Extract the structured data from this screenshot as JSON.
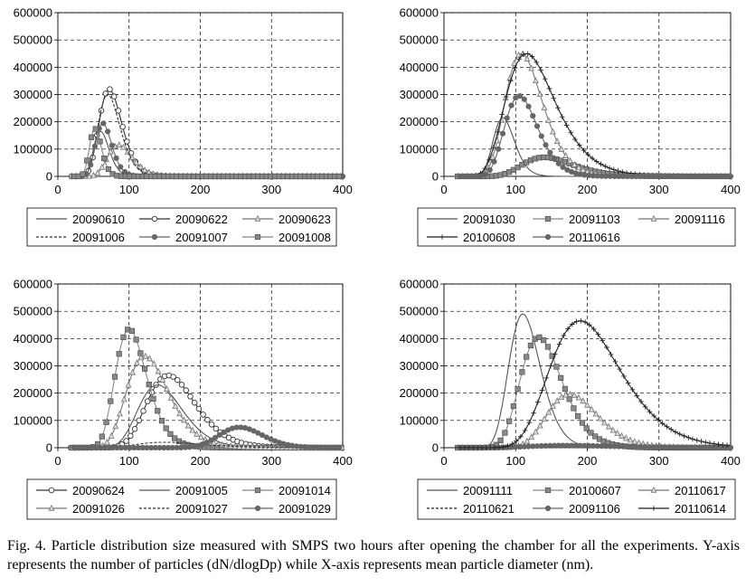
{
  "caption": "Fig. 4. Particle distribution size measured with SMPS two hours after opening the chamber for all the experiments. Y-axis represents the number of particles (dN/dlogDp) while X-axis represents mean particle diameter (nm).",
  "chart_data": [
    {
      "type": "line",
      "title": "",
      "xlabel": "",
      "ylabel": "",
      "xlim": [
        0,
        400
      ],
      "ylim": [
        0,
        600000
      ],
      "xticks": [
        "0",
        "100",
        "200",
        "300",
        "400"
      ],
      "yticks": [
        "0",
        "100000",
        "200000",
        "300000",
        "400000",
        "500000",
        "600000"
      ],
      "series": [
        {
          "name": "20090610",
          "marker": "none",
          "dash": "solid",
          "color": "#555555",
          "peak_x": 60,
          "peak_y": 165000,
          "width": 0.18
        },
        {
          "name": "20090622",
          "marker": "circle",
          "dash": "solid",
          "color": "#333333",
          "peak_x": 72,
          "peak_y": 320000,
          "width": 0.22
        },
        {
          "name": "20090623",
          "marker": "triangle",
          "dash": "solid",
          "color": "#777777",
          "peak_x": 85,
          "peak_y": 115000,
          "width": 0.2
        },
        {
          "name": "20091006",
          "marker": "none",
          "dash": "dashed",
          "color": "#333333",
          "peak_x": 70,
          "peak_y": 300000,
          "width": 0.22
        },
        {
          "name": "20091007",
          "marker": "dot",
          "dash": "solid",
          "color": "#666666",
          "peak_x": 63,
          "peak_y": 195000,
          "width": 0.18
        },
        {
          "name": "20091008",
          "marker": "square",
          "dash": "solid",
          "color": "#888888",
          "peak_x": 52,
          "peak_y": 175000,
          "width": 0.16
        }
      ]
    },
    {
      "type": "line",
      "title": "",
      "xlabel": "",
      "ylabel": "",
      "xlim": [
        0,
        400
      ],
      "ylim": [
        0,
        600000
      ],
      "xticks": [
        "0",
        "100",
        "200",
        "300",
        "400"
      ],
      "yticks": [
        "0",
        "100000",
        "200000",
        "300000",
        "400000",
        "500000",
        "600000"
      ],
      "series": [
        {
          "name": "20091030",
          "marker": "none",
          "dash": "solid",
          "color": "#555555",
          "peak_x": 82,
          "peak_y": 215000,
          "width": 0.18
        },
        {
          "name": "20091103",
          "marker": "square",
          "dash": "solid",
          "color": "#888888",
          "peak_x": 140,
          "peak_y": 70000,
          "width": 0.25
        },
        {
          "name": "20091116",
          "marker": "triangle",
          "dash": "solid",
          "color": "#777777",
          "peak_x": 108,
          "peak_y": 450000,
          "width": 0.24
        },
        {
          "name": "20100608",
          "marker": "plus",
          "dash": "solid",
          "color": "#222222",
          "peak_x": 115,
          "peak_y": 450000,
          "width": 0.3
        },
        {
          "name": "20110616",
          "marker": "dot",
          "dash": "solid",
          "color": "#666666",
          "peak_x": 105,
          "peak_y": 295000,
          "width": 0.22
        }
      ]
    },
    {
      "type": "line",
      "title": "",
      "xlabel": "",
      "ylabel": "",
      "xlim": [
        0,
        400
      ],
      "ylim": [
        0,
        600000
      ],
      "xticks": [
        "0",
        "100",
        "200",
        "300",
        "400"
      ],
      "yticks": [
        "0",
        "100000",
        "200000",
        "300000",
        "400000",
        "500000",
        "600000"
      ],
      "series": [
        {
          "name": "20090624",
          "marker": "circle",
          "dash": "solid",
          "color": "#333333",
          "peak_x": 155,
          "peak_y": 265000,
          "width": 0.22
        },
        {
          "name": "20091005",
          "marker": "none",
          "dash": "solid",
          "color": "#555555",
          "peak_x": 140,
          "peak_y": 230000,
          "width": 0.22
        },
        {
          "name": "20091014",
          "marker": "square",
          "dash": "solid",
          "color": "#888888",
          "peak_x": 100,
          "peak_y": 435000,
          "width": 0.22
        },
        {
          "name": "20091026",
          "marker": "triangle",
          "dash": "solid",
          "color": "#777777",
          "peak_x": 122,
          "peak_y": 335000,
          "width": 0.24
        },
        {
          "name": "20091027",
          "marker": "none",
          "dash": "dashed",
          "color": "#333333",
          "peak_x": 150,
          "peak_y": 20000,
          "width": 0.3
        },
        {
          "name": "20091029",
          "marker": "dot",
          "dash": "solid",
          "color": "#666666",
          "peak_x": 255,
          "peak_y": 75000,
          "width": 0.12
        }
      ]
    },
    {
      "type": "line",
      "title": "",
      "xlabel": "",
      "ylabel": "",
      "xlim": [
        0,
        400
      ],
      "ylim": [
        0,
        600000
      ],
      "xticks": [
        "0",
        "100",
        "200",
        "300",
        "400"
      ],
      "yticks": [
        "0",
        "100000",
        "200000",
        "300000",
        "400000",
        "500000",
        "600000"
      ],
      "series": [
        {
          "name": "20091111",
          "marker": "none",
          "dash": "solid",
          "color": "#555555",
          "peak_x": 110,
          "peak_y": 490000,
          "width": 0.2
        },
        {
          "name": "20100607",
          "marker": "square",
          "dash": "solid",
          "color": "#888888",
          "peak_x": 132,
          "peak_y": 405000,
          "width": 0.22
        },
        {
          "name": "20110617",
          "marker": "triangle",
          "dash": "solid",
          "color": "#777777",
          "peak_x": 175,
          "peak_y": 195000,
          "width": 0.2
        },
        {
          "name": "20110621",
          "marker": "none",
          "dash": "dashed",
          "color": "#222222",
          "peak_x": 200,
          "peak_y": 10000,
          "width": 0.35
        },
        {
          "name": "20091106",
          "marker": "dot",
          "dash": "solid",
          "color": "#666666",
          "peak_x": 170,
          "peak_y": 8000,
          "width": 0.35
        },
        {
          "name": "20110614",
          "marker": "plus",
          "dash": "solid",
          "color": "#222222",
          "peak_x": 190,
          "peak_y": 465000,
          "width": 0.26
        }
      ]
    }
  ]
}
